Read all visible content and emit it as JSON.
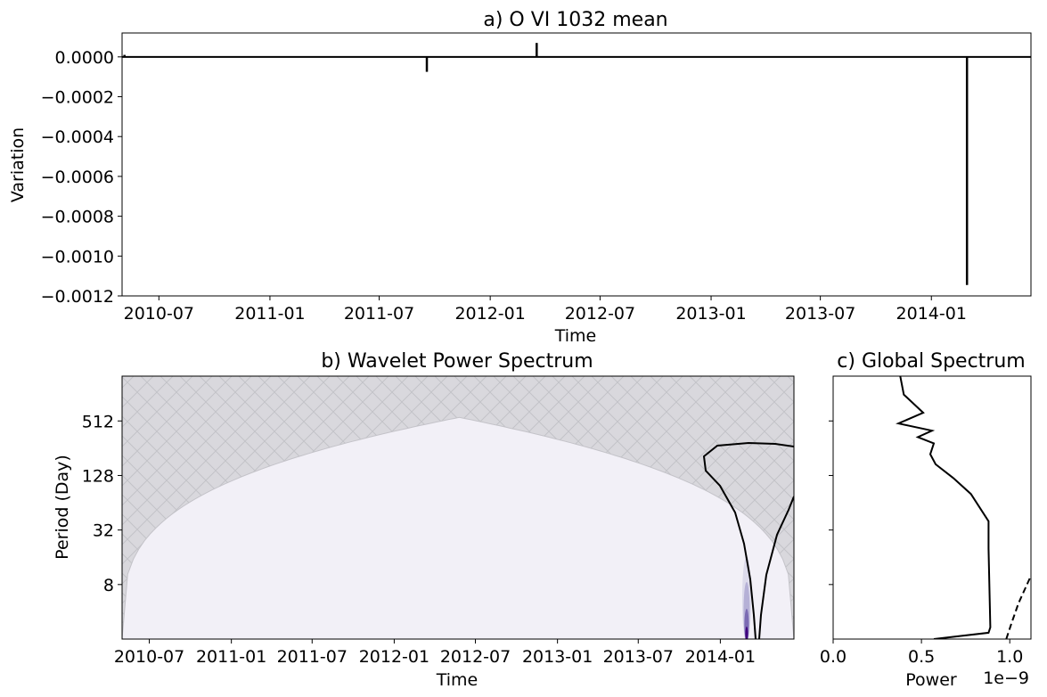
{
  "chart_data": [
    {
      "type": "line",
      "title": "a) O VI 1032 mean",
      "xlabel": "Time",
      "ylabel": "Variation",
      "x_ticks": [
        "2010-07",
        "2011-01",
        "2011-07",
        "2012-01",
        "2012-07",
        "2013-01",
        "2013-07",
        "2014-01"
      ],
      "y_ticks": [
        "0.0000",
        "−0.0002",
        "−0.0004",
        "−0.0006",
        "−0.0008",
        "−0.0010",
        "−0.0012"
      ],
      "xlim": [
        "2010-05-01",
        "2014-06-15"
      ],
      "ylim": [
        -0.0012,
        0.00012
      ],
      "series": [
        {
          "x": [
            "2010-05-01",
            "2010-05-05",
            "2011-09-18",
            "2012-03-18",
            "2014-03-01",
            "2014-06-15"
          ],
          "y": [
            0.0,
            1e-05,
            -7.5e-05,
            7e-05,
            -0.001145,
            0.0
          ]
        }
      ]
    },
    {
      "type": "heatmap",
      "title": "b) Wavelet Power Spectrum",
      "xlabel": "Time",
      "ylabel": "Period (Day)",
      "x_ticks": [
        "2010-07",
        "2011-01",
        "2011-07",
        "2012-01",
        "2012-07",
        "2013-01",
        "2013-07",
        "2014-01"
      ],
      "y_ticks": [
        "8",
        "32",
        "128",
        "512"
      ],
      "xlim": [
        "2010-05-01",
        "2014-06-15"
      ],
      "ylim": [
        2,
        1600
      ],
      "y_scale": "log2",
      "cone_of_influence_peak": {
        "x": "2012-05-26",
        "y": 560
      },
      "power_peak": {
        "x": "2014-03-01",
        "period": 2
      }
    },
    {
      "type": "line",
      "title": "c) Global Spectrum",
      "xlabel": "Power",
      "x_offset_label": "1e−9",
      "x_ticks": [
        "0.0",
        "0.5",
        "1.0"
      ],
      "xlim": [
        0,
        1.12
      ],
      "ylim": [
        2,
        1600
      ],
      "series": [
        {
          "style": "solid",
          "power": [
            0.57,
            0.88,
            0.89,
            0.88,
            0.88,
            0.78,
            0.68,
            0.58,
            0.55,
            0.57,
            0.48,
            0.56,
            0.37,
            0.51,
            0.4,
            0.38
          ],
          "period": [
            2,
            2.35,
            2.7,
            20,
            40,
            80,
            120,
            170,
            220,
            290,
            340,
            400,
            480,
            630,
            1000,
            1600
          ]
        },
        {
          "style": "dashed",
          "power": [
            0.98,
            1.01,
            1.05,
            1.12
          ],
          "period": [
            2,
            3,
            5,
            10
          ]
        }
      ]
    }
  ]
}
